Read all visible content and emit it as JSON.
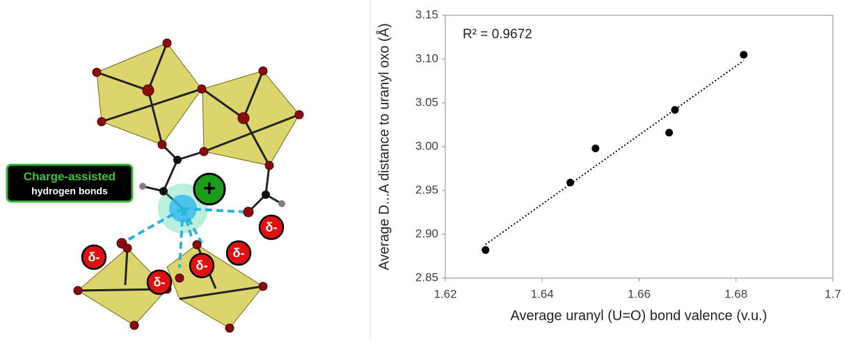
{
  "illustration": {
    "box_title": "Charge-assisted",
    "box_subtitle": "hydrogen bonds",
    "charge_plus": "+",
    "partial_charges": [
      "δ-",
      "δ-",
      "δ-",
      "δ-",
      "δ-"
    ]
  },
  "chart_data": {
    "type": "scatter",
    "x_label": "Average uranyl (U=O) bond valence (v.u.)",
    "y_label": "Average D...A distance to uranyl oxo (Å)",
    "annotation": "R² = 0.9672",
    "x": [
      1.6283,
      1.6458,
      1.651,
      1.6662,
      1.6674,
      1.6816
    ],
    "values": [
      2.882,
      2.959,
      2.998,
      3.016,
      3.042,
      3.105
    ],
    "color": "#000000",
    "trendline": true,
    "xlim": [
      1.62,
      1.7
    ],
    "xticks": [
      1.62,
      1.64,
      1.66,
      1.68,
      1.7
    ],
    "ylim": [
      2.85,
      3.15
    ],
    "yticks": [
      2.85,
      {
        "value": 2.9,
        "label": "2.90"
      },
      2.95,
      {
        "value": 3.0,
        "label": "3.00"
      },
      3.05,
      {
        "value": 3.1,
        "label": "3.10"
      },
      3.15
    ]
  }
}
